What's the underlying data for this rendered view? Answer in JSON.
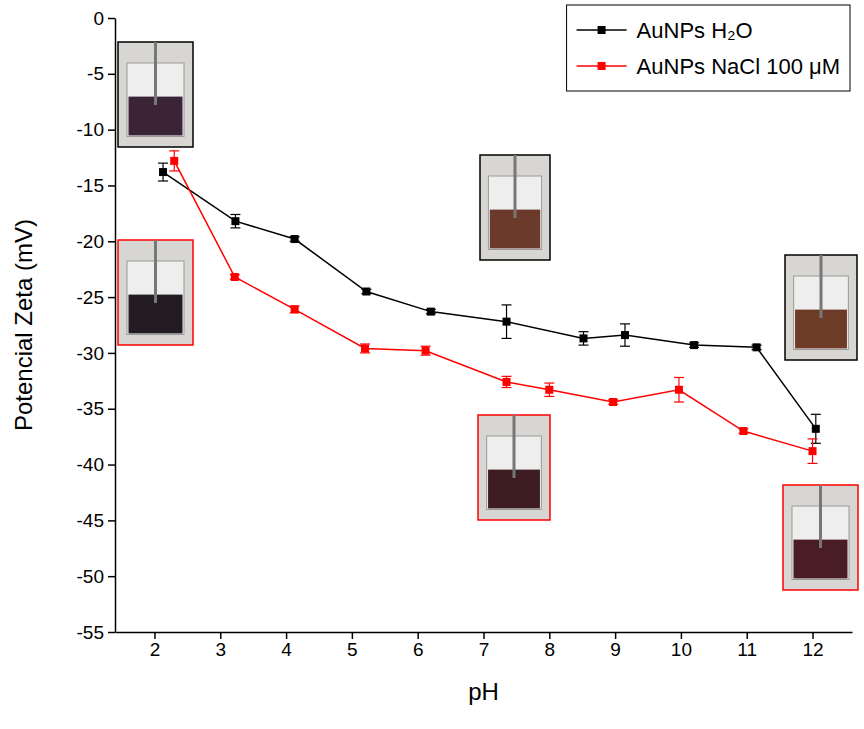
{
  "chart_data": {
    "type": "line",
    "x_label": "pH",
    "y_label": "Potencial Zeta (mV)",
    "xlim": [
      1.4,
      12.6
    ],
    "xticks": [
      2,
      3,
      4,
      5,
      6,
      7,
      8,
      9,
      10,
      11,
      12
    ],
    "ylim": [
      -55,
      0
    ],
    "yticks": [
      0,
      -5,
      -10,
      -15,
      -20,
      -25,
      -30,
      -35,
      -40,
      -45,
      -50,
      -55
    ],
    "legend": "upper right",
    "grid": false,
    "marker": "square",
    "line_style": "solid",
    "series": [
      {
        "name": "AuNPs H₂O",
        "color": "#000000",
        "x": [
          2.13,
          3.23,
          4.13,
          5.22,
          6.2,
          7.35,
          8.52,
          9.15,
          10.2,
          11.15,
          12.05
        ],
        "values": [
          -13.8,
          -18.2,
          -19.8,
          -24.5,
          -26.3,
          -27.2,
          -28.7,
          -28.4,
          -29.3,
          -29.5,
          -36.8
        ],
        "errors": [
          0.8,
          0.6,
          0.2,
          0.2,
          0.2,
          1.5,
          0.6,
          1.0,
          0.2,
          0.2,
          1.3
        ]
      },
      {
        "name": "AuNPs NaCl 100 μM",
        "color": "#ff0000",
        "x": [
          2.3,
          3.22,
          4.13,
          5.2,
          6.12,
          7.35,
          8.0,
          8.97,
          9.97,
          10.95,
          12.0
        ],
        "values": [
          -12.8,
          -23.2,
          -26.1,
          -29.6,
          -29.8,
          -32.6,
          -33.3,
          -34.4,
          -33.3,
          -37.0,
          -38.8
        ],
        "errors": [
          0.9,
          0.2,
          0.3,
          0.4,
          0.4,
          0.5,
          0.6,
          0.2,
          1.1,
          0.2,
          1.1
        ]
      }
    ]
  }
}
